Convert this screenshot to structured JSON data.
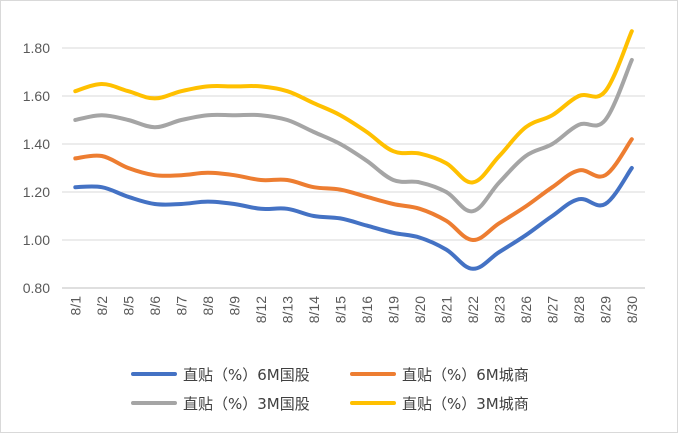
{
  "chart_data": {
    "type": "line",
    "title": "",
    "xlabel": "",
    "ylabel": "",
    "categories": [
      "8/1",
      "8/2",
      "8/5",
      "8/6",
      "8/7",
      "8/8",
      "8/9",
      "8/12",
      "8/13",
      "8/14",
      "8/15",
      "8/16",
      "8/19",
      "8/20",
      "8/21",
      "8/22",
      "8/23",
      "8/26",
      "8/27",
      "8/28",
      "8/29",
      "8/30"
    ],
    "ylim": [
      0.8,
      1.9
    ],
    "yticks": [
      "0.80",
      "1.00",
      "1.20",
      "1.40",
      "1.60",
      "1.80"
    ],
    "ytick_values": [
      0.8,
      1.0,
      1.2,
      1.4,
      1.6,
      1.8
    ],
    "grid": true,
    "legend_position": "bottom",
    "series": [
      {
        "name": "直贴（%）6M国股",
        "color": "#4472C4",
        "values": [
          1.22,
          1.22,
          1.18,
          1.15,
          1.15,
          1.16,
          1.15,
          1.13,
          1.13,
          1.1,
          1.09,
          1.06,
          1.03,
          1.01,
          0.96,
          0.88,
          0.95,
          1.02,
          1.1,
          1.17,
          1.15,
          1.3
        ]
      },
      {
        "name": "直贴（%）6M城商",
        "color": "#ED7D31",
        "values": [
          1.34,
          1.35,
          1.3,
          1.27,
          1.27,
          1.28,
          1.27,
          1.25,
          1.25,
          1.22,
          1.21,
          1.18,
          1.15,
          1.13,
          1.08,
          1.0,
          1.07,
          1.14,
          1.22,
          1.29,
          1.27,
          1.42
        ]
      },
      {
        "name": "直贴（%）3M国股",
        "color": "#A5A5A5",
        "values": [
          1.5,
          1.52,
          1.5,
          1.47,
          1.5,
          1.52,
          1.52,
          1.52,
          1.5,
          1.45,
          1.4,
          1.33,
          1.25,
          1.24,
          1.2,
          1.12,
          1.24,
          1.35,
          1.4,
          1.48,
          1.5,
          1.75
        ]
      },
      {
        "name": "直贴（%）3M城商",
        "color": "#FFC000",
        "values": [
          1.62,
          1.65,
          1.62,
          1.59,
          1.62,
          1.64,
          1.64,
          1.64,
          1.62,
          1.57,
          1.52,
          1.45,
          1.37,
          1.36,
          1.32,
          1.24,
          1.35,
          1.47,
          1.52,
          1.6,
          1.62,
          1.87
        ]
      }
    ]
  }
}
